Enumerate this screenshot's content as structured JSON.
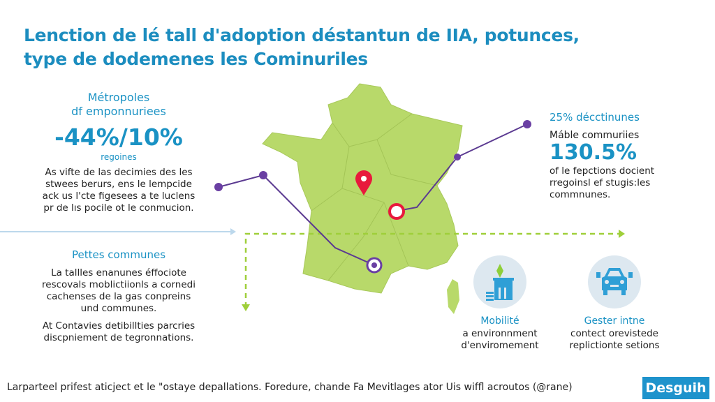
{
  "title": {
    "line1": "Lenction de lé tall d'adoption déstantun de IIA, potunces,",
    "line2": "type de dodemenes les Cominuriles"
  },
  "left_top": {
    "heading1": "Métropoles",
    "heading2": "df emponnuriees",
    "stat": "-44%/10%",
    "stat_sub": "regoines",
    "body": [
      "As vifte de las decimies des les",
      "stwees berurs, ens le lempcide",
      "ack us l'cte figesees a te luclens",
      "pr de lıs pocile ot le conmucion."
    ]
  },
  "left_bottom": {
    "heading": "Pettes communes",
    "body1": [
      "La tallles enanunes éffociote",
      "rescovals moblictiionls a cornedi",
      "cachenses de la gas conpreins",
      "und communes."
    ],
    "body2": [
      "At Contavies detibillties parcries",
      "discpniement de tegronnations."
    ]
  },
  "right_top": {
    "heading": "25% décctinunes",
    "label": "Máble commuriies",
    "stat": "130.5%",
    "body": [
      "of le fepctions docient",
      "rregoinsl ef stugis:les",
      "commnunes."
    ]
  },
  "icons": [
    {
      "icon": "building-icon",
      "title": "Mobilité",
      "lines": [
        "a environnment",
        "d'enviromement"
      ]
    },
    {
      "icon": "car-icon",
      "title": "Gester intne",
      "lines": [
        "contect orevistede",
        "replictionte setions"
      ]
    }
  ],
  "footer": {
    "text": "Larparteel prifest aticject et le \"ostaye depallations. Foredure, chande Fa Mevitlages ator Uis wiffl acroutos (@rane)",
    "badge": "Desguih"
  },
  "colors": {
    "accent": "#1a92c4",
    "map": "#b8d96a",
    "connector": "#5b3a91",
    "pin": "#e8193c",
    "arrow": "#9fcf3a"
  }
}
